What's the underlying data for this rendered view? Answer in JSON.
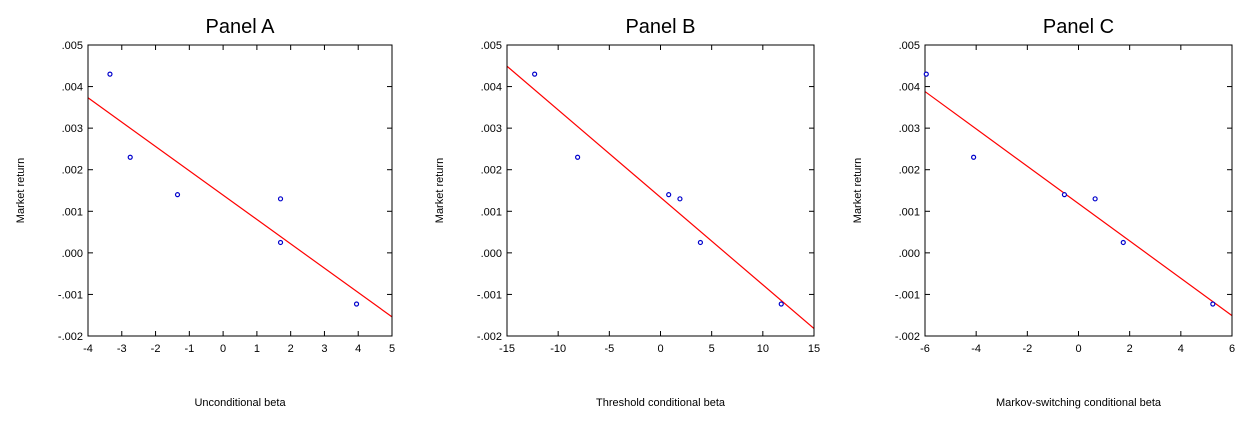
{
  "chart_data": [
    {
      "type": "scatter",
      "title": "Panel A",
      "xlabel": "Unconditional beta",
      "ylabel": "Market return",
      "xlim": [
        -4,
        5
      ],
      "ylim": [
        -0.002,
        0.005
      ],
      "xticks": [
        "-4",
        "-3",
        "-2",
        "-1",
        "0",
        "1",
        "2",
        "3",
        "4",
        "5"
      ],
      "yticks": [
        "-.002",
        "-.001",
        ".000",
        ".001",
        ".002",
        ".003",
        ".004",
        ".005"
      ],
      "grid": false,
      "points": [
        {
          "x": -3.35,
          "y": 0.0043
        },
        {
          "x": -2.75,
          "y": 0.0023
        },
        {
          "x": -1.35,
          "y": 0.0014
        },
        {
          "x": 1.7,
          "y": 0.0013
        },
        {
          "x": 1.7,
          "y": 0.00025
        },
        {
          "x": 3.95,
          "y": -0.00123
        }
      ],
      "fit_line": {
        "x": [
          -4,
          5
        ],
        "y": [
          0.00373,
          -0.00154
        ]
      },
      "colors": {
        "points": "#0000cc",
        "fit_line": "#ff0000"
      }
    },
    {
      "type": "scatter",
      "title": "Panel B",
      "xlabel": "Threshold conditional beta",
      "ylabel": "Market return",
      "xlim": [
        -15,
        15
      ],
      "ylim": [
        -0.002,
        0.005
      ],
      "xticks": [
        "-15",
        "-10",
        "-5",
        "0",
        "5",
        "10",
        "15"
      ],
      "yticks": [
        "-.002",
        "-.001",
        ".000",
        ".001",
        ".002",
        ".003",
        ".004",
        ".005"
      ],
      "grid": false,
      "points": [
        {
          "x": -12.3,
          "y": 0.0043
        },
        {
          "x": -8.1,
          "y": 0.0023
        },
        {
          "x": 0.8,
          "y": 0.0014
        },
        {
          "x": 1.9,
          "y": 0.0013
        },
        {
          "x": 3.9,
          "y": 0.00025
        },
        {
          "x": 11.8,
          "y": -0.00123
        }
      ],
      "fit_line": {
        "x": [
          -15,
          15
        ],
        "y": [
          0.00449,
          -0.00182
        ]
      },
      "colors": {
        "points": "#0000cc",
        "fit_line": "#ff0000"
      }
    },
    {
      "type": "scatter",
      "title": "Panel C",
      "xlabel": "Markov-switching conditional beta",
      "ylabel": "Market return",
      "xlim": [
        -6,
        6
      ],
      "ylim": [
        -0.002,
        0.005
      ],
      "xticks": [
        "-6",
        "-4",
        "-2",
        "0",
        "2",
        "4",
        "6"
      ],
      "yticks": [
        "-.002",
        "-.001",
        ".000",
        ".001",
        ".002",
        ".003",
        ".004",
        ".005"
      ],
      "grid": false,
      "points": [
        {
          "x": -5.95,
          "y": 0.0043
        },
        {
          "x": -4.1,
          "y": 0.0023
        },
        {
          "x": -0.55,
          "y": 0.0014
        },
        {
          "x": 0.65,
          "y": 0.0013
        },
        {
          "x": 1.75,
          "y": 0.00025
        },
        {
          "x": 5.25,
          "y": -0.00123
        }
      ],
      "fit_line": {
        "x": [
          -6,
          6
        ],
        "y": [
          0.00388,
          -0.00151
        ]
      },
      "colors": {
        "points": "#0000cc",
        "fit_line": "#ff0000"
      }
    }
  ]
}
